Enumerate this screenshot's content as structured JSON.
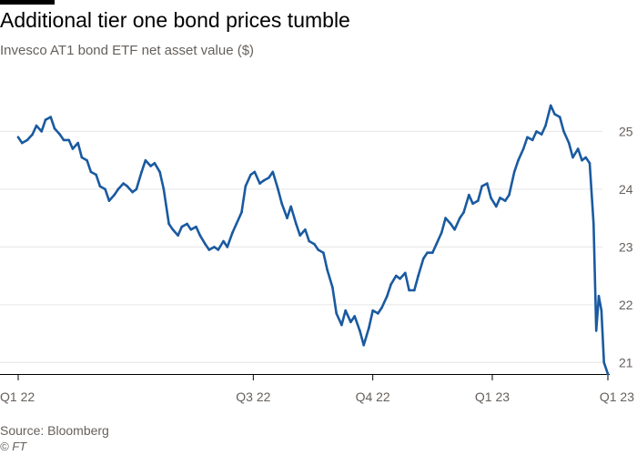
{
  "header": {
    "title": "Additional tier one bond prices tumble",
    "subtitle": "Invesco AT1 bond ETF net asset value ($)"
  },
  "footer": {
    "source": "Source: Bloomberg",
    "copyright": "© FT"
  },
  "colors": {
    "line": "#1a5aa0",
    "grid": "#e6e6e6",
    "axis": "#000000",
    "text": "#66605c"
  },
  "chart_data": {
    "type": "line",
    "title": "Additional tier one bond prices tumble",
    "subtitle": "Invesco AT1 bond ETF net asset value ($)",
    "xlabel": "",
    "ylabel": "",
    "xlim": [
      "2022-01-01",
      "2023-03-31"
    ],
    "ylim": [
      20.8,
      25.7
    ],
    "y_axis_position": "right",
    "grid": "horizontal",
    "legend": "none",
    "x_ticks": [
      {
        "label": "Q1 22",
        "date": "2022-01-01"
      },
      {
        "label": "Q3 22",
        "date": "2022-07-01"
      },
      {
        "label": "Q4 22",
        "date": "2022-10-01"
      },
      {
        "label": "Q1 23",
        "date": "2023-01-01"
      },
      {
        "label": "Q1 23",
        "date": "2023-03-31"
      }
    ],
    "y_ticks": [
      21,
      22,
      23,
      24,
      25
    ],
    "series": [
      {
        "values": [
          [
            "2022-01-01",
            24.9
          ],
          [
            "2022-01-04",
            24.8
          ],
          [
            "2022-01-08",
            24.85
          ],
          [
            "2022-01-12",
            24.95
          ],
          [
            "2022-01-15",
            25.1
          ],
          [
            "2022-01-19",
            25.0
          ],
          [
            "2022-01-22",
            25.2
          ],
          [
            "2022-01-26",
            25.25
          ],
          [
            "2022-01-29",
            25.05
          ],
          [
            "2022-02-02",
            24.95
          ],
          [
            "2022-02-05",
            24.85
          ],
          [
            "2022-02-09",
            24.85
          ],
          [
            "2022-02-12",
            24.7
          ],
          [
            "2022-02-16",
            24.8
          ],
          [
            "2022-02-19",
            24.55
          ],
          [
            "2022-02-23",
            24.5
          ],
          [
            "2022-02-26",
            24.3
          ],
          [
            "2022-03-02",
            24.25
          ],
          [
            "2022-03-05",
            24.05
          ],
          [
            "2022-03-09",
            24.0
          ],
          [
            "2022-03-12",
            23.8
          ],
          [
            "2022-03-16",
            23.9
          ],
          [
            "2022-03-19",
            24.0
          ],
          [
            "2022-03-23",
            24.1
          ],
          [
            "2022-03-26",
            24.05
          ],
          [
            "2022-03-30",
            23.95
          ],
          [
            "2022-04-02",
            24.0
          ],
          [
            "2022-04-06",
            24.3
          ],
          [
            "2022-04-09",
            24.5
          ],
          [
            "2022-04-13",
            24.4
          ],
          [
            "2022-04-16",
            24.45
          ],
          [
            "2022-04-20",
            24.3
          ],
          [
            "2022-04-23",
            24.0
          ],
          [
            "2022-04-27",
            23.4
          ],
          [
            "2022-04-30",
            23.3
          ],
          [
            "2022-05-04",
            23.2
          ],
          [
            "2022-05-07",
            23.35
          ],
          [
            "2022-05-11",
            23.4
          ],
          [
            "2022-05-14",
            23.3
          ],
          [
            "2022-05-18",
            23.35
          ],
          [
            "2022-05-21",
            23.2
          ],
          [
            "2022-05-25",
            23.05
          ],
          [
            "2022-05-28",
            22.95
          ],
          [
            "2022-06-01",
            23.0
          ],
          [
            "2022-06-04",
            22.95
          ],
          [
            "2022-06-08",
            23.1
          ],
          [
            "2022-06-11",
            23.0
          ],
          [
            "2022-06-15",
            23.25
          ],
          [
            "2022-06-18",
            23.4
          ],
          [
            "2022-06-22",
            23.6
          ],
          [
            "2022-06-25",
            24.05
          ],
          [
            "2022-06-29",
            24.25
          ],
          [
            "2022-07-02",
            24.3
          ],
          [
            "2022-07-06",
            24.1
          ],
          [
            "2022-07-09",
            24.15
          ],
          [
            "2022-07-13",
            24.2
          ],
          [
            "2022-07-16",
            24.3
          ],
          [
            "2022-07-20",
            24.0
          ],
          [
            "2022-07-23",
            23.75
          ],
          [
            "2022-07-27",
            23.5
          ],
          [
            "2022-07-30",
            23.7
          ],
          [
            "2022-08-03",
            23.4
          ],
          [
            "2022-08-06",
            23.2
          ],
          [
            "2022-08-10",
            23.3
          ],
          [
            "2022-08-13",
            23.1
          ],
          [
            "2022-08-17",
            23.05
          ],
          [
            "2022-08-20",
            22.95
          ],
          [
            "2022-08-24",
            22.9
          ],
          [
            "2022-08-27",
            22.6
          ],
          [
            "2022-08-31",
            22.3
          ],
          [
            "2022-09-03",
            21.85
          ],
          [
            "2022-09-07",
            21.65
          ],
          [
            "2022-09-10",
            21.9
          ],
          [
            "2022-09-14",
            21.7
          ],
          [
            "2022-09-17",
            21.8
          ],
          [
            "2022-09-21",
            21.55
          ],
          [
            "2022-09-24",
            21.3
          ],
          [
            "2022-09-28",
            21.6
          ],
          [
            "2022-10-01",
            21.9
          ],
          [
            "2022-10-05",
            21.85
          ],
          [
            "2022-10-08",
            21.95
          ],
          [
            "2022-10-12",
            22.15
          ],
          [
            "2022-10-15",
            22.35
          ],
          [
            "2022-10-19",
            22.5
          ],
          [
            "2022-10-22",
            22.45
          ],
          [
            "2022-10-26",
            22.55
          ],
          [
            "2022-10-29",
            22.25
          ],
          [
            "2022-11-02",
            22.25
          ],
          [
            "2022-11-05",
            22.5
          ],
          [
            "2022-11-09",
            22.8
          ],
          [
            "2022-11-12",
            22.9
          ],
          [
            "2022-11-16",
            22.9
          ],
          [
            "2022-11-19",
            23.05
          ],
          [
            "2022-11-23",
            23.25
          ],
          [
            "2022-11-26",
            23.5
          ],
          [
            "2022-11-30",
            23.4
          ],
          [
            "2022-12-03",
            23.3
          ],
          [
            "2022-12-07",
            23.5
          ],
          [
            "2022-12-10",
            23.6
          ],
          [
            "2022-12-14",
            23.9
          ],
          [
            "2022-12-17",
            23.75
          ],
          [
            "2022-12-21",
            23.8
          ],
          [
            "2022-12-24",
            24.05
          ],
          [
            "2022-12-28",
            24.1
          ],
          [
            "2022-12-31",
            23.85
          ],
          [
            "2023-01-04",
            23.7
          ],
          [
            "2023-01-07",
            23.85
          ],
          [
            "2023-01-11",
            23.8
          ],
          [
            "2023-01-14",
            23.9
          ],
          [
            "2023-01-18",
            24.3
          ],
          [
            "2023-01-21",
            24.5
          ],
          [
            "2023-01-25",
            24.7
          ],
          [
            "2023-01-28",
            24.9
          ],
          [
            "2023-02-01",
            24.85
          ],
          [
            "2023-02-04",
            25.0
          ],
          [
            "2023-02-08",
            24.95
          ],
          [
            "2023-02-11",
            25.1
          ],
          [
            "2023-02-15",
            25.45
          ],
          [
            "2023-02-18",
            25.3
          ],
          [
            "2023-02-22",
            25.25
          ],
          [
            "2023-02-25",
            25.0
          ],
          [
            "2023-03-01",
            24.8
          ],
          [
            "2023-03-04",
            24.55
          ],
          [
            "2023-03-08",
            24.7
          ],
          [
            "2023-03-11",
            24.5
          ],
          [
            "2023-03-14",
            24.55
          ],
          [
            "2023-03-17",
            24.45
          ],
          [
            "2023-03-20",
            23.4
          ],
          [
            "2023-03-22",
            21.55
          ],
          [
            "2023-03-24",
            22.15
          ],
          [
            "2023-03-26",
            21.9
          ],
          [
            "2023-03-28",
            21.0
          ],
          [
            "2023-03-31",
            20.8
          ]
        ]
      }
    ]
  }
}
